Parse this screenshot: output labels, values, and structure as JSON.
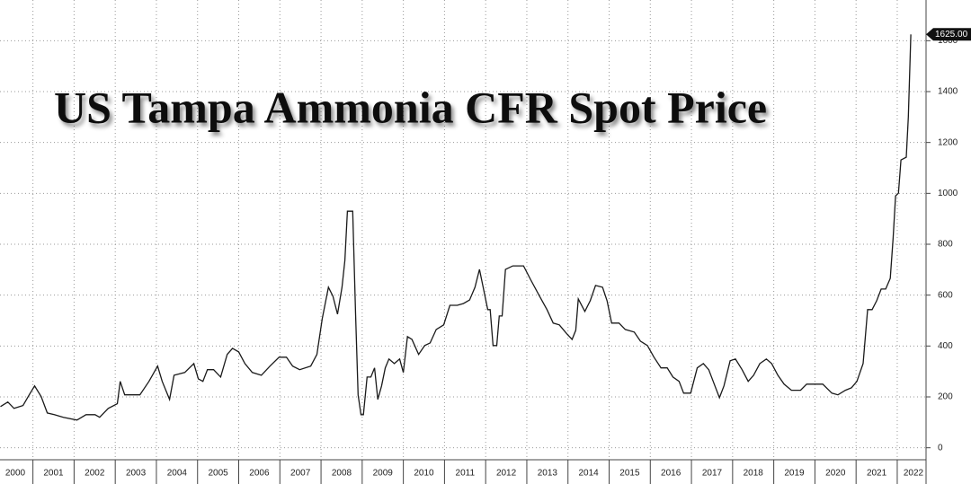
{
  "chart_data": {
    "type": "line",
    "title": "US Tampa Ammonia CFR Spot Price",
    "color": "#1a1a1a",
    "x": [
      2000.21,
      2000.39,
      2000.54,
      2000.76,
      2000.91,
      2001.04,
      2001.2,
      2001.35,
      2001.52,
      2001.74,
      2002.07,
      2002.29,
      2002.51,
      2002.62,
      2002.83,
      2003.05,
      2003.12,
      2003.23,
      2003.6,
      2003.82,
      2004.03,
      2004.14,
      2004.32,
      2004.43,
      2004.69,
      2004.91,
      2005.02,
      2005.13,
      2005.24,
      2005.39,
      2005.56,
      2005.72,
      2005.85,
      2006.0,
      2006.15,
      2006.33,
      2006.55,
      2006.76,
      2006.98,
      2007.16,
      2007.31,
      2007.48,
      2007.75,
      2007.9,
      2008.03,
      2008.18,
      2008.29,
      2008.4,
      2008.51,
      2008.58,
      2008.64,
      2008.77,
      2008.84,
      2008.9,
      2008.97,
      2009.03,
      2009.12,
      2009.21,
      2009.3,
      2009.38,
      2009.47,
      2009.56,
      2009.65,
      2009.78,
      2009.91,
      2010.0,
      2010.1,
      2010.21,
      2010.37,
      2010.52,
      2010.65,
      2010.8,
      2010.98,
      2011.13,
      2011.31,
      2011.46,
      2011.61,
      2011.74,
      2011.85,
      2011.94,
      2012.05,
      2012.11,
      2012.18,
      2012.27,
      2012.33,
      2012.4,
      2012.48,
      2012.66,
      2012.92,
      2013.1,
      2013.31,
      2013.49,
      2013.64,
      2013.79,
      2013.97,
      2014.1,
      2014.19,
      2014.25,
      2014.41,
      2014.54,
      2014.67,
      2014.84,
      2014.95,
      2015.06,
      2015.24,
      2015.39,
      2015.61,
      2015.76,
      2015.93,
      2016.09,
      2016.26,
      2016.41,
      2016.55,
      2016.7,
      2016.81,
      2016.98,
      2017.14,
      2017.29,
      2017.42,
      2017.57,
      2017.68,
      2017.79,
      2017.94,
      2018.07,
      2018.23,
      2018.38,
      2018.51,
      2018.66,
      2018.82,
      2018.95,
      2019.1,
      2019.25,
      2019.43,
      2019.65,
      2019.8,
      2020.19,
      2020.41,
      2020.56,
      2020.74,
      2020.89,
      2021.02,
      2021.17,
      2021.28,
      2021.39,
      2021.5,
      2021.61,
      2021.72,
      2021.83,
      2021.9,
      2021.96,
      2022.03,
      2022.09,
      2022.22,
      2022.27,
      2022.33
    ],
    "values": [
      162,
      180,
      155,
      166,
      208,
      243,
      201,
      137,
      130,
      120,
      109,
      130,
      130,
      120,
      155,
      173,
      261,
      208,
      208,
      261,
      321,
      261,
      190,
      285,
      296,
      331,
      271,
      261,
      307,
      307,
      278,
      367,
      391,
      377,
      331,
      296,
      285,
      321,
      356,
      356,
      321,
      307,
      321,
      367,
      507,
      631,
      596,
      525,
      631,
      737,
      930,
      930,
      525,
      208,
      130,
      130,
      278,
      278,
      314,
      190,
      243,
      314,
      349,
      331,
      349,
      296,
      437,
      426,
      367,
      402,
      412,
      465,
      483,
      560,
      560,
      567,
      581,
      631,
      701,
      631,
      543,
      543,
      402,
      402,
      518,
      518,
      701,
      715,
      715,
      659,
      596,
      543,
      490,
      483,
      448,
      426,
      462,
      585,
      536,
      578,
      638,
      631,
      578,
      490,
      490,
      465,
      455,
      419,
      402,
      356,
      314,
      314,
      278,
      261,
      215,
      215,
      314,
      331,
      307,
      243,
      197,
      243,
      342,
      349,
      307,
      261,
      285,
      331,
      349,
      331,
      285,
      250,
      226,
      226,
      250,
      250,
      215,
      208,
      226,
      236,
      261,
      331,
      543,
      543,
      578,
      624,
      624,
      666,
      825,
      990,
      1001,
      1131,
      1142,
      1300,
      1625
    ],
    "last_value": {
      "value": 1625,
      "label": "1625.00"
    },
    "xlim": [
      2000.2,
      2022.7
    ],
    "xticks": [
      2000,
      2001,
      2002,
      2003,
      2004,
      2005,
      2006,
      2007,
      2008,
      2009,
      2010,
      2011,
      2012,
      2013,
      2014,
      2015,
      2016,
      2017,
      2018,
      2019,
      2020,
      2021,
      2022
    ],
    "ylim": [
      -40,
      1760
    ],
    "yticks": [
      0,
      200,
      400,
      600,
      800,
      1000,
      1200,
      1400,
      1600
    ],
    "grid": true
  }
}
